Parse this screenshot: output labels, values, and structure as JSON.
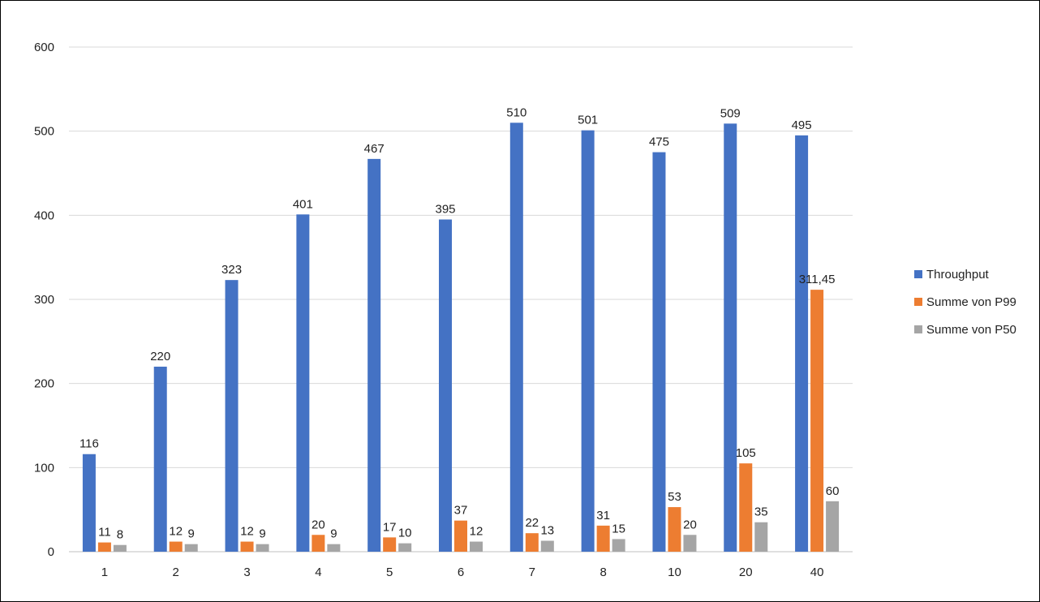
{
  "chart_data": {
    "type": "bar",
    "categories": [
      "1",
      "2",
      "3",
      "4",
      "5",
      "6",
      "7",
      "8",
      "10",
      "20",
      "40"
    ],
    "series": [
      {
        "name": "Throughput",
        "color": "#4472C4",
        "values": [
          116,
          220,
          323,
          401,
          467,
          395,
          510,
          501,
          475,
          509,
          495
        ],
        "labels": [
          "116",
          "220",
          "323",
          "401",
          "467",
          "395",
          "510",
          "501",
          "475",
          "509",
          "495"
        ]
      },
      {
        "name": "Summe von P99",
        "color": "#ED7D31",
        "values": [
          11,
          12,
          12,
          20,
          17,
          37,
          22,
          31,
          53,
          105,
          311.45
        ],
        "labels": [
          "11",
          "12",
          "12",
          "20",
          "17",
          "37",
          "22",
          "31",
          "53",
          "105",
          "311,45"
        ]
      },
      {
        "name": "Summe von P50",
        "color": "#A5A5A5",
        "values": [
          8,
          9,
          9,
          9,
          10,
          12,
          13,
          15,
          20,
          35,
          60
        ],
        "labels": [
          "8",
          "9",
          "9",
          "9",
          "10",
          "12",
          "13",
          "15",
          "20",
          "35",
          "60"
        ]
      }
    ],
    "ylim": [
      0,
      600
    ],
    "yticks": [
      "0",
      "100",
      "200",
      "300",
      "400",
      "500",
      "600"
    ],
    "ytick_values": [
      0,
      100,
      200,
      300,
      400,
      500,
      600
    ],
    "grid": true,
    "legend_position": "right",
    "gridline_color": "#D9D9D9",
    "axis_color": "#BFBFBF"
  }
}
